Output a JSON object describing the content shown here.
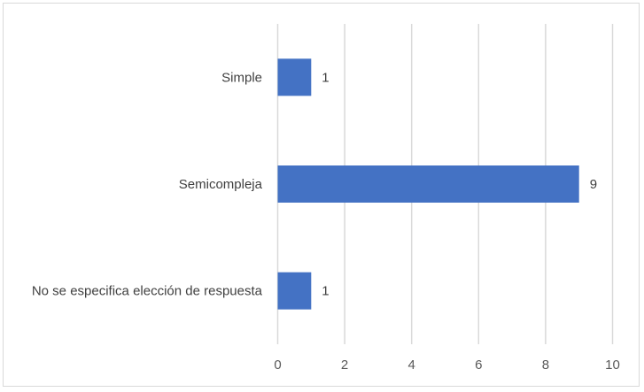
{
  "chart_data": {
    "type": "bar",
    "orientation": "horizontal",
    "categories": [
      "Simple",
      "Semicompleja",
      "No se especifica elección de respuesta"
    ],
    "values": [
      1,
      9,
      1
    ],
    "xlim": [
      0,
      10
    ],
    "xticks": [
      0,
      2,
      4,
      6,
      8,
      10
    ],
    "grid": true,
    "legend": "none",
    "bar_color": "#4472c4",
    "grid_color": "#d9d9d9",
    "title": "",
    "xlabel": "",
    "ylabel": ""
  }
}
